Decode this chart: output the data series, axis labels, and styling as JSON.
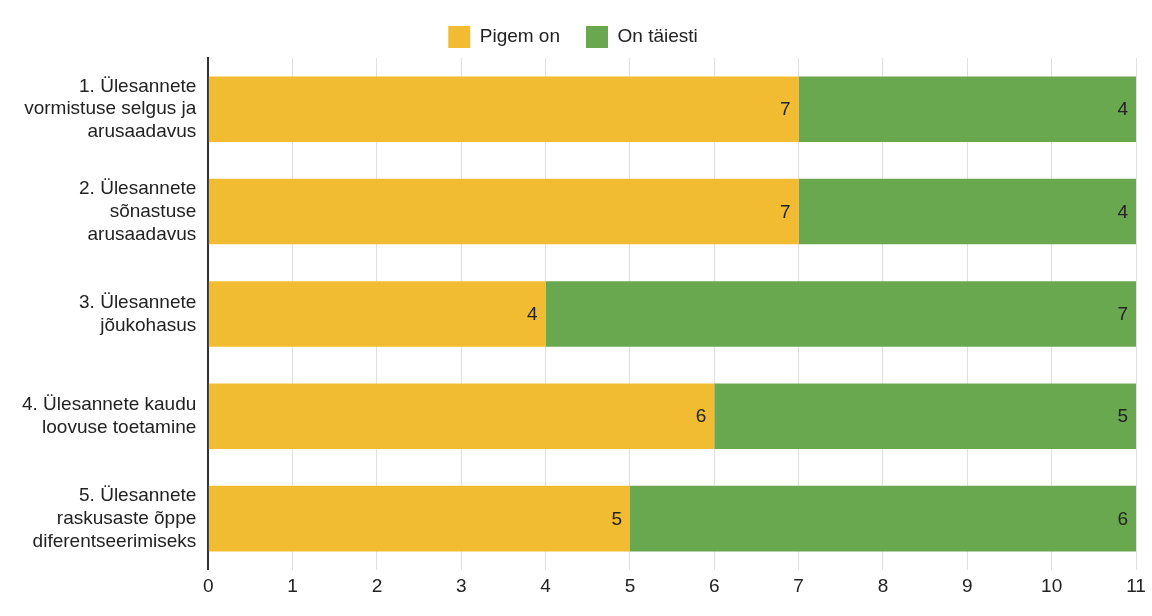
{
  "chart_data": {
    "type": "bar",
    "orientation": "horizontal",
    "stacked": true,
    "categories": [
      "1. Ülesannete vormistuse selgus ja arusaadavus",
      "2. Ülesannete sõnastuse arusaadavus",
      "3. Ülesannete jõukohasus",
      "4. Ülesannete kaudu loovuse toetamine",
      "5. Ülesannete raskusaste õppe diferentseerimiseks"
    ],
    "series": [
      {
        "name": "Pigem on",
        "color": "#f1bc31",
        "values": [
          7,
          7,
          4,
          6,
          5
        ]
      },
      {
        "name": "On täiesti",
        "color": "#6aa84f",
        "values": [
          4,
          4,
          7,
          5,
          6
        ]
      }
    ],
    "xlim": [
      0,
      11
    ],
    "xticks": [
      0,
      1,
      2,
      3,
      4,
      5,
      6,
      7,
      8,
      9,
      10,
      11
    ],
    "grid": "x",
    "legend": "top",
    "data_labels": true
  }
}
